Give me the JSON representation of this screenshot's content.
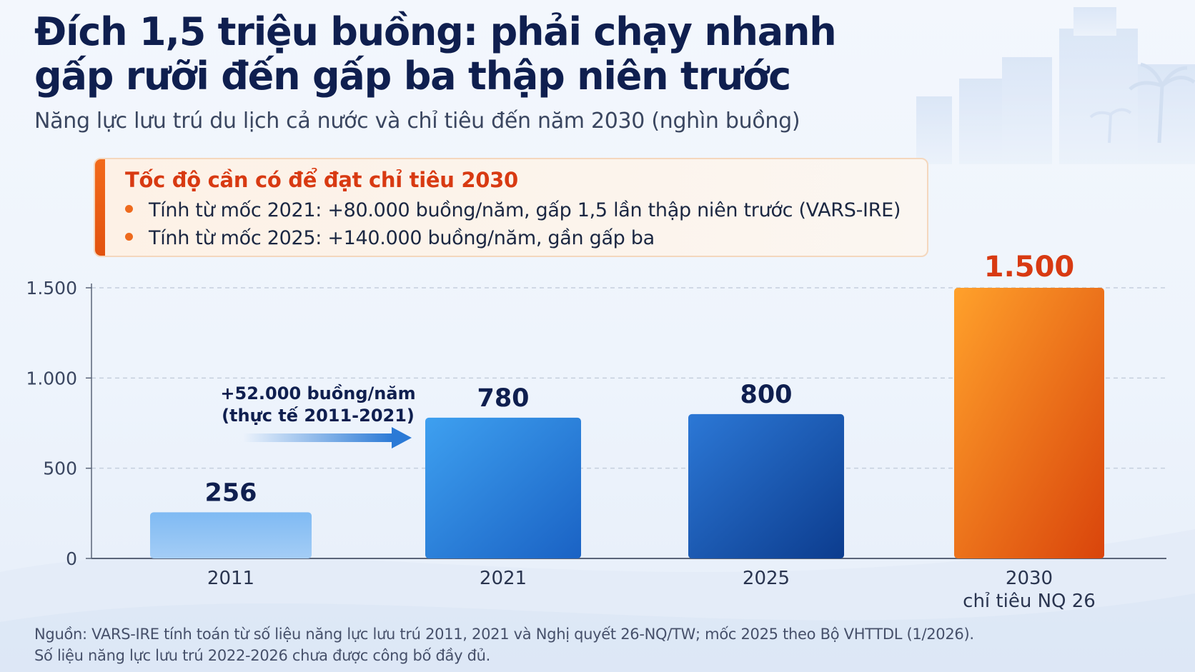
{
  "title_lines": [
    "Đích 1,5 triệu buồng: phải chạy nhanh",
    "gấp rưỡi đến gấp ba thập niên trước"
  ],
  "subtitle": "Năng lực lưu trú du lịch cả nước và chỉ tiêu đến năm 2030 (nghìn buồng)",
  "callout": {
    "title": "Tốc độ cần có để đạt chỉ tiêu 2030",
    "items": [
      "Tính từ mốc 2021: +80.000 buồng/năm, gấp 1,5 lần thập niên trước (VARS-IRE)",
      "Tính từ mốc 2025: +140.000 buồng/năm, gần gấp ba"
    ]
  },
  "arrow_annotation": [
    "+52.000 buồng/năm",
    "(thực tế 2011-2021)"
  ],
  "source_lines": [
    "Nguồn: VARS-IRE tính toán từ số liệu năng lực lưu trú 2011, 2021 và Nghị quyết 26-NQ/TW; mốc 2025 theo Bộ VHTTDL (1/2026).",
    "Số liệu năng lực lưu trú 2022-2026 chưa được công bố đầy đủ."
  ],
  "chart_data": {
    "type": "bar",
    "categories": [
      "2011",
      "2021",
      "2025",
      "2030"
    ],
    "category_sublabels": [
      "",
      "",
      "",
      "chỉ tiêu NQ 26"
    ],
    "values": [
      256,
      780,
      800,
      1500
    ],
    "value_labels": [
      "256",
      "780",
      "800",
      "1.500"
    ],
    "yticks": [
      0,
      500,
      1000,
      1500
    ],
    "ytick_labels": [
      "0",
      "500",
      "1.000",
      "1.500"
    ],
    "ylim": [
      0,
      1500
    ],
    "grid": true,
    "bar_styles": [
      "light-blue",
      "blue",
      "dark-blue",
      "orange-target"
    ]
  }
}
